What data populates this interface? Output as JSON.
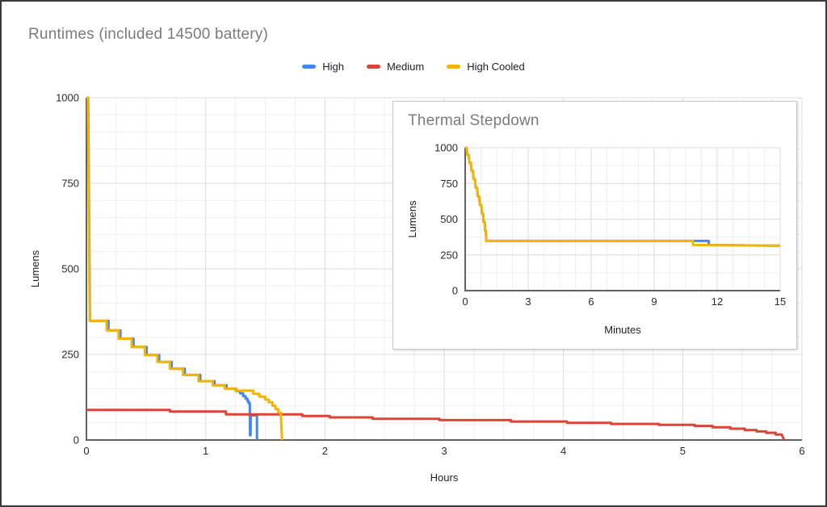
{
  "page": {
    "title": "Runtimes (included 14500 battery)"
  },
  "chart_data": [
    {
      "id": "runtimes",
      "type": "line",
      "title": "Runtimes (included 14500 battery)",
      "xlabel": "Hours",
      "ylabel": "Lumens",
      "x_range": [
        0,
        6
      ],
      "y_range": [
        0,
        1000
      ],
      "x_ticks": [
        0,
        1,
        2,
        3,
        4,
        5,
        6
      ],
      "y_ticks": [
        0,
        250,
        500,
        750,
        1000
      ],
      "x_minor_step": 0.25,
      "y_minor_step": 50,
      "grid": true,
      "legend_position": "top",
      "series": [
        {
          "name": "High",
          "color": "#4285f4",
          "points": [
            [
              0,
              1000
            ],
            [
              0.015,
              1000
            ],
            [
              0.03,
              348
            ],
            [
              0.185,
              348
            ],
            [
              0.185,
              320
            ],
            [
              0.285,
              320
            ],
            [
              0.285,
              296
            ],
            [
              0.395,
              296
            ],
            [
              0.395,
              272
            ],
            [
              0.505,
              272
            ],
            [
              0.505,
              248
            ],
            [
              0.61,
              248
            ],
            [
              0.61,
              228
            ],
            [
              0.715,
              228
            ],
            [
              0.715,
              208
            ],
            [
              0.825,
              208
            ],
            [
              0.825,
              190
            ],
            [
              0.955,
              190
            ],
            [
              0.955,
              172
            ],
            [
              1.075,
              172
            ],
            [
              1.075,
              160
            ],
            [
              1.175,
              160
            ],
            [
              1.175,
              150
            ],
            [
              1.255,
              150
            ],
            [
              1.255,
              143
            ],
            [
              1.29,
              143
            ],
            [
              1.29,
              136
            ],
            [
              1.315,
              136
            ],
            [
              1.315,
              128
            ],
            [
              1.335,
              128
            ],
            [
              1.335,
              121
            ],
            [
              1.35,
              121
            ],
            [
              1.35,
              114
            ],
            [
              1.36,
              114
            ],
            [
              1.36,
              108
            ],
            [
              1.37,
              108
            ],
            [
              1.372,
              14
            ],
            [
              1.376,
              14
            ],
            [
              1.378,
              72
            ],
            [
              1.43,
              72
            ],
            [
              1.43,
              0
            ]
          ]
        },
        {
          "name": "Medium",
          "color": "#db4437",
          "points": [
            [
              0,
              88
            ],
            [
              0.7,
              88
            ],
            [
              0.7,
              83
            ],
            [
              1.17,
              83
            ],
            [
              1.17,
              75
            ],
            [
              1.81,
              75
            ],
            [
              1.81,
              70
            ],
            [
              2.04,
              70
            ],
            [
              2.04,
              66
            ],
            [
              2.4,
              66
            ],
            [
              2.4,
              62
            ],
            [
              2.96,
              62
            ],
            [
              2.96,
              58
            ],
            [
              3.56,
              58
            ],
            [
              3.56,
              54
            ],
            [
              4.03,
              54
            ],
            [
              4.03,
              50
            ],
            [
              4.4,
              50
            ],
            [
              4.4,
              47
            ],
            [
              4.8,
              47
            ],
            [
              4.8,
              44
            ],
            [
              5.1,
              44
            ],
            [
              5.1,
              41
            ],
            [
              5.25,
              41
            ],
            [
              5.25,
              37
            ],
            [
              5.4,
              37
            ],
            [
              5.4,
              33
            ],
            [
              5.52,
              33
            ],
            [
              5.52,
              29
            ],
            [
              5.62,
              29
            ],
            [
              5.62,
              25
            ],
            [
              5.7,
              25
            ],
            [
              5.7,
              21
            ],
            [
              5.78,
              21
            ],
            [
              5.78,
              16
            ],
            [
              5.83,
              16
            ],
            [
              5.85,
              0
            ]
          ]
        },
        {
          "name": "High Cooled",
          "color": "#f4b400",
          "points": [
            [
              0,
              1000
            ],
            [
              0.013,
              1000
            ],
            [
              0.028,
              348
            ],
            [
              0.17,
              348
            ],
            [
              0.17,
              320
            ],
            [
              0.27,
              320
            ],
            [
              0.27,
              296
            ],
            [
              0.38,
              296
            ],
            [
              0.38,
              272
            ],
            [
              0.49,
              272
            ],
            [
              0.49,
              248
            ],
            [
              0.595,
              248
            ],
            [
              0.595,
              228
            ],
            [
              0.7,
              228
            ],
            [
              0.7,
              208
            ],
            [
              0.81,
              208
            ],
            [
              0.81,
              190
            ],
            [
              0.94,
              190
            ],
            [
              0.94,
              172
            ],
            [
              1.06,
              172
            ],
            [
              1.06,
              160
            ],
            [
              1.16,
              160
            ],
            [
              1.16,
              150
            ],
            [
              1.25,
              150
            ],
            [
              1.25,
              144
            ],
            [
              1.4,
              144
            ],
            [
              1.4,
              135
            ],
            [
              1.45,
              135
            ],
            [
              1.45,
              127
            ],
            [
              1.5,
              127
            ],
            [
              1.5,
              118
            ],
            [
              1.53,
              118
            ],
            [
              1.53,
              110
            ],
            [
              1.56,
              110
            ],
            [
              1.56,
              100
            ],
            [
              1.585,
              100
            ],
            [
              1.585,
              90
            ],
            [
              1.61,
              90
            ],
            [
              1.61,
              80
            ],
            [
              1.63,
              80
            ],
            [
              1.64,
              0
            ]
          ]
        }
      ]
    },
    {
      "id": "thermal_stepdown",
      "type": "line",
      "title": "Thermal Stepdown",
      "xlabel": "Minutes",
      "ylabel": "Lumens",
      "x_range": [
        0,
        15
      ],
      "y_range": [
        0,
        1000
      ],
      "x_ticks": [
        0,
        3,
        6,
        9,
        12,
        15
      ],
      "y_ticks": [
        0,
        250,
        500,
        750,
        1000
      ],
      "x_minor_step": 0.75,
      "y_minor_step": 125,
      "grid": true,
      "legend_position": "none",
      "series": [
        {
          "name": "High",
          "color": "#4285f4",
          "points": [
            [
              0,
              1000
            ],
            [
              0.07,
              1000
            ],
            [
              0.1,
              950
            ],
            [
              0.17,
              950
            ],
            [
              0.2,
              895
            ],
            [
              0.27,
              895
            ],
            [
              0.3,
              840
            ],
            [
              0.37,
              840
            ],
            [
              0.4,
              780
            ],
            [
              0.47,
              780
            ],
            [
              0.5,
              720
            ],
            [
              0.57,
              720
            ],
            [
              0.6,
              660
            ],
            [
              0.67,
              660
            ],
            [
              0.7,
              600
            ],
            [
              0.77,
              600
            ],
            [
              0.8,
              540
            ],
            [
              0.85,
              540
            ],
            [
              0.88,
              480
            ],
            [
              0.93,
              480
            ],
            [
              0.95,
              420
            ],
            [
              0.99,
              420
            ],
            [
              1.0,
              348
            ],
            [
              11.6,
              348
            ],
            [
              11.6,
              320
            ],
            [
              15,
              314
            ]
          ]
        },
        {
          "name": "High Cooled",
          "color": "#f4b400",
          "points": [
            [
              0,
              1000
            ],
            [
              0.07,
              1000
            ],
            [
              0.1,
              950
            ],
            [
              0.17,
              950
            ],
            [
              0.2,
              895
            ],
            [
              0.27,
              895
            ],
            [
              0.3,
              840
            ],
            [
              0.37,
              840
            ],
            [
              0.4,
              780
            ],
            [
              0.47,
              780
            ],
            [
              0.5,
              720
            ],
            [
              0.57,
              720
            ],
            [
              0.6,
              660
            ],
            [
              0.67,
              660
            ],
            [
              0.7,
              600
            ],
            [
              0.77,
              600
            ],
            [
              0.8,
              540
            ],
            [
              0.85,
              540
            ],
            [
              0.88,
              480
            ],
            [
              0.93,
              480
            ],
            [
              0.95,
              420
            ],
            [
              0.99,
              420
            ],
            [
              1.0,
              348
            ],
            [
              10.85,
              348
            ],
            [
              10.85,
              320
            ],
            [
              15,
              314
            ]
          ]
        }
      ]
    }
  ]
}
